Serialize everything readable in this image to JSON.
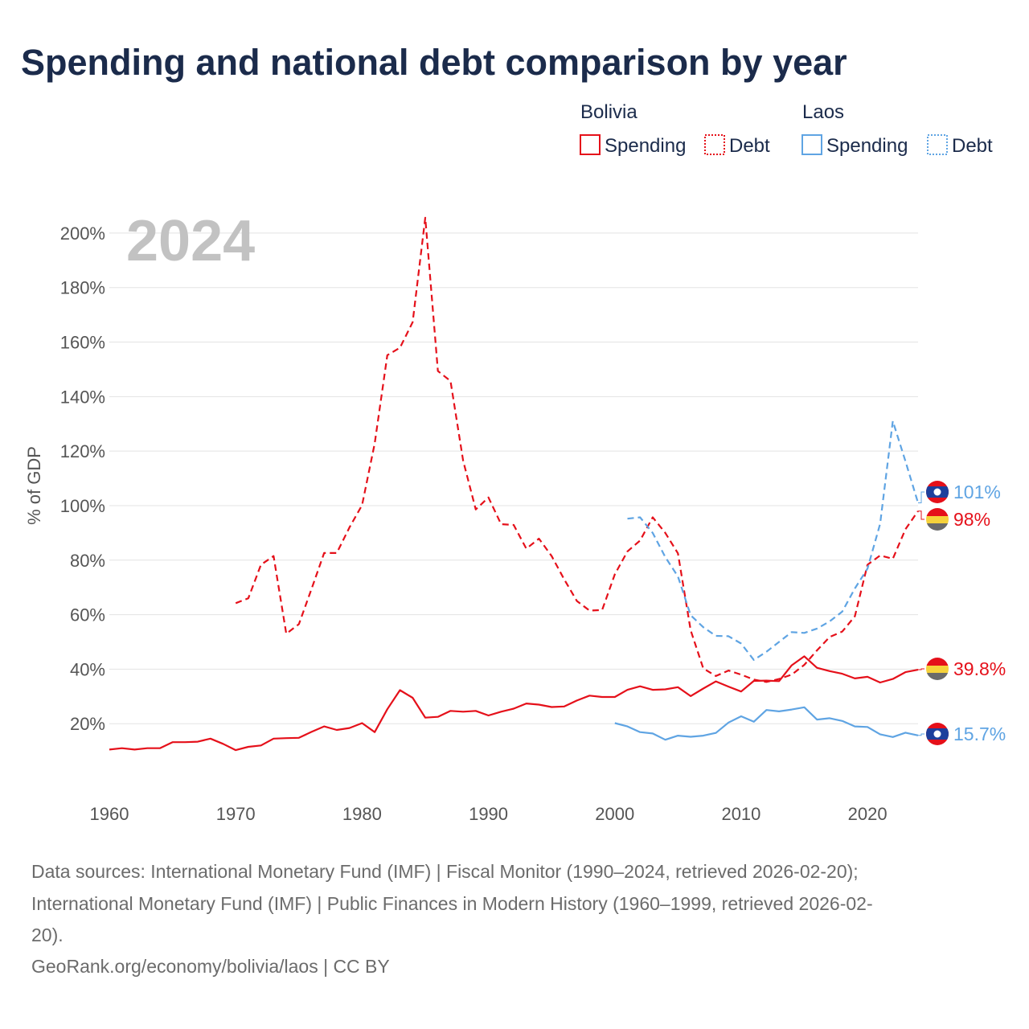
{
  "title": "Spending and national debt comparison by year",
  "year_label": "2024",
  "legend": {
    "groups": [
      {
        "name": "Bolivia",
        "color": "#e5101a",
        "items": [
          "Spending",
          "Debt"
        ]
      },
      {
        "name": "Laos",
        "color": "#5fa4e3",
        "items": [
          "Spending",
          "Debt"
        ]
      }
    ]
  },
  "end_labels": {
    "laos_debt": "101%",
    "bolivia_debt": "98%",
    "bolivia_spending": "39.8%",
    "laos_spending": "15.7%"
  },
  "footer": {
    "source_line1": "Data sources: International Monetary Fund (IMF) | Fiscal Monitor (1990–2024, retrieved 2026-02-20);",
    "source_line2": "International Monetary Fund (IMF) | Public Finances in Modern History (1960–1999, retrieved 2026-02-",
    "source_line3": "20).",
    "credit": "GeoRank.org/economy/bolivia/laos | CC BY"
  },
  "chart_data": {
    "type": "line",
    "title": "Spending and national debt comparison by year",
    "xlabel": "",
    "ylabel": "% of GDP",
    "xlim": [
      1960,
      2024
    ],
    "ylim": [
      0,
      210
    ],
    "x_ticks": [
      1960,
      1970,
      1980,
      1990,
      2000,
      2010,
      2020
    ],
    "y_ticks": [
      20,
      40,
      60,
      80,
      100,
      120,
      140,
      160,
      180,
      200
    ],
    "y_tick_labels": [
      "20%",
      "40%",
      "60%",
      "80%",
      "100%",
      "120%",
      "140%",
      "160%",
      "180%",
      "200%"
    ],
    "x_tick_labels": [
      "1960",
      "1970",
      "1980",
      "1990",
      "2000",
      "2010",
      "2020"
    ],
    "series": [
      {
        "name": "Bolivia Spending",
        "country": "Bolivia",
        "metric": "Spending",
        "color": "#e5101a",
        "dash": "solid",
        "x": [
          1960,
          1961,
          1962,
          1963,
          1964,
          1965,
          1966,
          1967,
          1968,
          1969,
          1970,
          1971,
          1972,
          1973,
          1974,
          1975,
          1976,
          1977,
          1978,
          1979,
          1980,
          1981,
          1982,
          1983,
          1984,
          1985,
          1986,
          1987,
          1988,
          1989,
          1990,
          1991,
          1992,
          1993,
          1994,
          1995,
          1996,
          1997,
          1998,
          1999,
          2000,
          2001,
          2002,
          2003,
          2004,
          2005,
          2006,
          2007,
          2008,
          2009,
          2010,
          2011,
          2012,
          2013,
          2014,
          2015,
          2016,
          2017,
          2018,
          2019,
          2020,
          2021,
          2022,
          2023,
          2024
        ],
        "values": [
          10.5,
          11,
          10.5,
          11,
          11,
          13.2,
          13.2,
          13.4,
          14.5,
          12.6,
          10.3,
          11.5,
          12,
          14.5,
          14.7,
          14.8,
          17,
          19,
          17.7,
          18.4,
          20.2,
          16.9,
          25.3,
          32.3,
          29.5,
          22.2,
          22.5,
          24.7,
          24.4,
          24.7,
          23,
          24.4,
          25.5,
          27.4,
          27,
          26.1,
          26.3,
          28.5,
          30.3,
          29.8,
          29.8,
          32.4,
          33.7,
          32.4,
          32.6,
          33.4,
          30.1,
          32.9,
          35.5,
          33.6,
          31.8,
          35.7,
          35.8,
          35.6,
          41.4,
          44.7,
          40.5,
          39.3,
          38.3,
          36.6,
          37.2,
          35.1,
          36.4,
          38.9,
          39.8
        ]
      },
      {
        "name": "Bolivia Debt",
        "country": "Bolivia",
        "metric": "Debt",
        "color": "#e5101a",
        "dash": "dashed",
        "x": [
          1970,
          1971,
          1972,
          1973,
          1974,
          1975,
          1976,
          1977,
          1978,
          1979,
          1980,
          1981,
          1982,
          1983,
          1984,
          1985,
          1986,
          1987,
          1988,
          1989,
          1990,
          1991,
          1992,
          1993,
          1994,
          1995,
          1996,
          1997,
          1998,
          1999,
          2000,
          2001,
          2002,
          2003,
          2004,
          2005,
          2006,
          2007,
          2008,
          2009,
          2010,
          2011,
          2012,
          2013,
          2014,
          2015,
          2016,
          2017,
          2018,
          2019,
          2020,
          2021,
          2022,
          2023,
          2024
        ],
        "values": [
          64.2,
          66,
          78.3,
          81.5,
          53,
          56.5,
          69.4,
          82.6,
          82.6,
          92,
          100.2,
          122.8,
          155.2,
          157.9,
          167.3,
          205.6,
          149.4,
          145.7,
          116.5,
          98.6,
          103,
          93.2,
          92.9,
          84.2,
          87.9,
          81.5,
          72.9,
          65,
          61.5,
          61.7,
          74.8,
          83.2,
          87.2,
          95.7,
          90,
          82.5,
          54.3,
          40.3,
          37.5,
          39.5,
          38,
          36.2,
          35.3,
          36.4,
          38,
          41.6,
          46.9,
          51.8,
          53.8,
          59.4,
          78.3,
          81.7,
          80.5,
          91.3,
          98
        ]
      },
      {
        "name": "Laos Spending",
        "country": "Laos",
        "metric": "Spending",
        "color": "#5fa4e3",
        "dash": "solid",
        "x": [
          2000,
          2001,
          2002,
          2003,
          2004,
          2005,
          2006,
          2007,
          2008,
          2009,
          2010,
          2011,
          2012,
          2013,
          2014,
          2015,
          2016,
          2017,
          2018,
          2019,
          2020,
          2021,
          2022,
          2023,
          2024
        ],
        "values": [
          20.2,
          19,
          16.9,
          16.4,
          14.1,
          15.6,
          15.2,
          15.6,
          16.6,
          20.4,
          22.7,
          20.7,
          25,
          24.5,
          25.2,
          26,
          21.5,
          22,
          21,
          19,
          18.8,
          16.1,
          15.1,
          16.7,
          15.7
        ]
      },
      {
        "name": "Laos Debt",
        "country": "Laos",
        "metric": "Debt",
        "color": "#5fa4e3",
        "dash": "dashed",
        "x": [
          2001,
          2002,
          2003,
          2004,
          2005,
          2006,
          2007,
          2008,
          2009,
          2010,
          2011,
          2012,
          2013,
          2014,
          2015,
          2016,
          2017,
          2018,
          2019,
          2020,
          2021,
          2022,
          2023,
          2024
        ],
        "values": [
          95.2,
          95.7,
          90,
          81.1,
          74,
          59.8,
          55.4,
          52.2,
          52.1,
          49.4,
          43.4,
          46.4,
          50,
          53.6,
          53.3,
          54.9,
          57.5,
          61.1,
          69.6,
          76.9,
          93.3,
          131,
          116.3,
          101
        ]
      }
    ]
  }
}
